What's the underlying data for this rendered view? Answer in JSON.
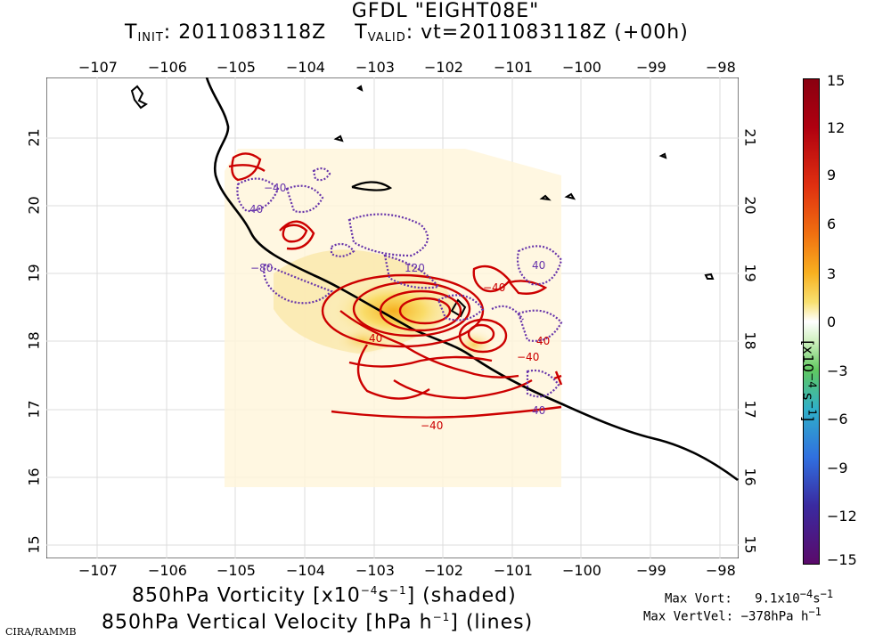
{
  "title": {
    "line1": "GFDL \"EIGHT08E\"",
    "t_init_label": "T",
    "t_init_sub": "INIT",
    "t_init_value": ": 2011083118Z",
    "t_valid_label": "T",
    "t_valid_sub": "VALID",
    "t_valid_value": ": vt=2011083118Z (+00h)"
  },
  "map": {
    "lon_ticks": [
      "−107",
      "−106",
      "−105",
      "−104",
      "−103",
      "−102",
      "−101",
      "−100",
      "−99",
      "−98"
    ],
    "lat_ticks": [
      "21",
      "20",
      "19",
      "18",
      "17",
      "16",
      "15"
    ],
    "lon_range": [
      -108,
      -97.9
    ],
    "lat_range": [
      14.8,
      21.9
    ],
    "contour_labels": [
      "120",
      "−80",
      "−40",
      "−40",
      "−40",
      "−40",
      "40",
      "40",
      "40",
      "40",
      "40"
    ],
    "colors": {
      "positive": "#cc0000",
      "negative": "#6633aa",
      "coast": "#000000",
      "grid": "#d8d8d8"
    }
  },
  "colorbar": {
    "ticks": [
      "15",
      "12",
      "9",
      "6",
      "3",
      "0",
      "−3",
      "−6",
      "−9",
      "−12",
      "−15"
    ],
    "unit_label": "[x10",
    "unit_exp": "−4",
    "unit_rest": " s",
    "unit_exp2": "−1",
    "unit_close": "]",
    "colors": [
      "#5a0a6a",
      "#3a2aa0",
      "#3070e0",
      "#30b8d0",
      "#40c060",
      "#a0e070",
      "#ffffff",
      "#ffffff",
      "#f8e070",
      "#f8b020",
      "#f07010",
      "#e03010",
      "#b00010",
      "#8a0010"
    ]
  },
  "caption": {
    "line1_a": "850hPa Vorticity [x10",
    "line1_exp": "−4",
    "line1_b": "s",
    "line1_exp2": "−1",
    "line1_c": "] (shaded)",
    "line2_a": "850hPa Vertical Velocity [hPa h",
    "line2_exp": "−1",
    "line2_b": "] (lines)"
  },
  "stats": {
    "vort_label": "Max Vort:",
    "vort_value": "9.1x10",
    "vort_exp": "−4",
    "vort_unit": "s",
    "vort_exp2": "−1",
    "vv_label": "Max VertVel:",
    "vv_value": "−378hPa h",
    "vv_exp": "−1"
  },
  "credit": "CIRA/RAMMB"
}
